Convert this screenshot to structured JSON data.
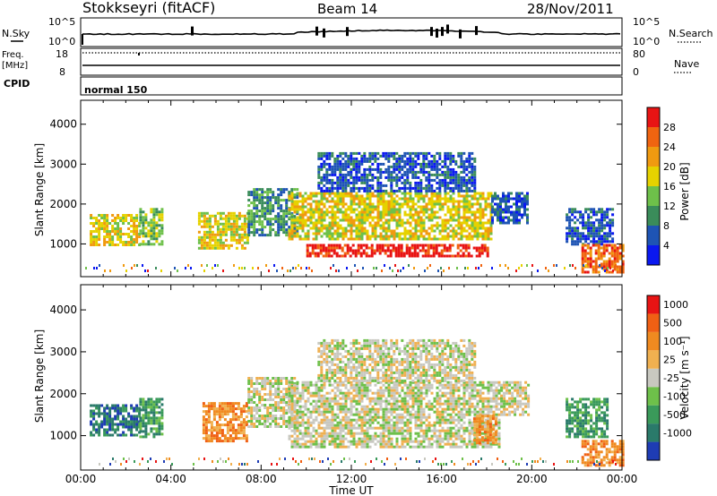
{
  "header": {
    "station": "Stokkseyri (fitACF)",
    "beam": "Beam 14",
    "date": "28/Nov/2011"
  },
  "params_panel": {
    "nsky_label": "N.Sky",
    "nsky_ticks": [
      "10^5",
      "10^0"
    ],
    "nsearch_label": "N.Search",
    "nsearch_ticks": [
      "10^5",
      "10^0"
    ],
    "freq_label": "Freq.",
    "freq_unit": "[MHz]",
    "freq_ticks": [
      "18",
      "8"
    ],
    "nave_label": "Nave",
    "nave_ticks": [
      "80",
      "0"
    ],
    "cpid_label": "CPID",
    "cpid_value": "normal 150"
  },
  "chart_data": [
    {
      "type": "heatmap",
      "quantity": "power",
      "xlabel": "",
      "ylabel": "Slant Range [km]",
      "xlim": [
        0,
        24
      ],
      "ylim": [
        180,
        4600
      ],
      "yticks": [
        "1000",
        "2000",
        "3000",
        "4000"
      ],
      "colorbar": {
        "label": "Power [dB]",
        "tick_labels": [
          "4",
          "8",
          "12",
          "16",
          "20",
          "24",
          "28"
        ],
        "colors": [
          "#0a18f0",
          "#1e54b4",
          "#3a8c5a",
          "#6ec04a",
          "#e6d200",
          "#f09a10",
          "#f06410",
          "#e81414"
        ]
      },
      "regions": [
        {
          "t": [
            0.4,
            2.6
          ],
          "r": [
            1000,
            1750
          ],
          "level": 4
        },
        {
          "t": [
            2.6,
            3.6
          ],
          "r": [
            1000,
            1900
          ],
          "level": 3
        },
        {
          "t": [
            5.2,
            7.4
          ],
          "r": [
            900,
            1800
          ],
          "level": 4
        },
        {
          "t": [
            7.4,
            9.6
          ],
          "r": [
            1200,
            2400
          ],
          "level": 2
        },
        {
          "t": [
            9.2,
            18.2
          ],
          "r": [
            1100,
            2300
          ],
          "level": 4
        },
        {
          "t": [
            10.0,
            18.0
          ],
          "r": [
            700,
            1000
          ],
          "level": 7
        },
        {
          "t": [
            10.5,
            17.5
          ],
          "r": [
            2300,
            3300
          ],
          "level": 1
        },
        {
          "t": [
            18.2,
            19.8
          ],
          "r": [
            1500,
            2300
          ],
          "level": 1
        },
        {
          "t": [
            21.5,
            23.6
          ],
          "r": [
            1000,
            1900
          ],
          "level": 1
        },
        {
          "t": [
            22.2,
            24.0
          ],
          "r": [
            300,
            1000
          ],
          "level": 6
        }
      ]
    },
    {
      "type": "heatmap",
      "quantity": "velocity",
      "xlabel": "Time UT",
      "ylabel": "Slant Range [km]",
      "xlim": [
        0,
        24
      ],
      "ylim": [
        180,
        4600
      ],
      "yticks": [
        "1000",
        "2000",
        "3000",
        "4000"
      ],
      "xticks": [
        "00:00",
        "04:00",
        "08:00",
        "12:00",
        "16:00",
        "20:00",
        "00:00"
      ],
      "colorbar": {
        "label": "Velocity [m s⁻¹]",
        "tick_labels": [
          "1000",
          "500",
          "100",
          "25",
          "-25",
          "-100",
          "-500",
          "-1000"
        ],
        "colors": [
          "#1e3cb4",
          "#2a7a6a",
          "#3a9a5a",
          "#6ec04a",
          "#c8c8c0",
          "#f0b050",
          "#f08a20",
          "#f06014",
          "#e81414"
        ]
      },
      "regions": [
        {
          "t": [
            0.4,
            2.6
          ],
          "r": [
            1000,
            1750
          ],
          "level": 1
        },
        {
          "t": [
            2.6,
            3.6
          ],
          "r": [
            1000,
            1900
          ],
          "level": 2
        },
        {
          "t": [
            5.4,
            7.4
          ],
          "r": [
            900,
            1800
          ],
          "level": 6
        },
        {
          "t": [
            7.4,
            9.6
          ],
          "r": [
            1200,
            2400
          ],
          "level": 4
        },
        {
          "t": [
            9.2,
            18.6
          ],
          "r": [
            700,
            2300
          ],
          "level": 4
        },
        {
          "t": [
            10.5,
            17.5
          ],
          "r": [
            2300,
            3300
          ],
          "level": 4
        },
        {
          "t": [
            17.4,
            18.4
          ],
          "r": [
            800,
            1500
          ],
          "level": 6
        },
        {
          "t": [
            18.6,
            19.8
          ],
          "r": [
            1500,
            2300
          ],
          "level": 4
        },
        {
          "t": [
            21.5,
            23.4
          ],
          "r": [
            1000,
            1900
          ],
          "level": 2
        },
        {
          "t": [
            22.2,
            24.0
          ],
          "r": [
            300,
            900
          ],
          "level": 6
        }
      ]
    }
  ]
}
